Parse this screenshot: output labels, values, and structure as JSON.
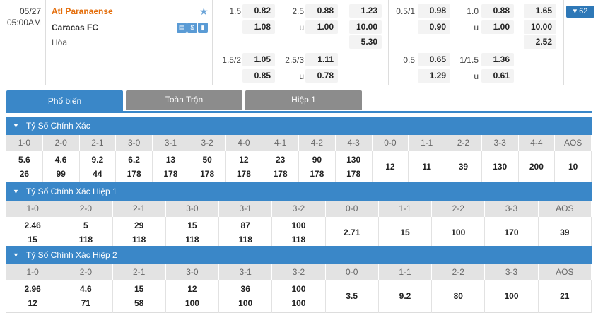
{
  "match": {
    "date": "05/27",
    "time": "05:00AM",
    "home_team": "Atl Paranaense",
    "away_team": "Caracas FC",
    "draw_label": "Hòa",
    "more_count": "62",
    "icons": [
      "stats-icon",
      "dollar-icon",
      "chart-icon"
    ],
    "handicap_ft": {
      "line1": "1.5",
      "home1": "0.82",
      "away1": "1.08",
      "line2": "1.5/2",
      "home2": "1.05",
      "away2": "0.85"
    },
    "ou_ft": {
      "line1": "2.5",
      "over1": "0.88",
      "u_label1": "u",
      "under1": "1.00",
      "line2": "2.5/3",
      "over2": "1.11",
      "u_label2": "u",
      "under2": "0.78"
    },
    "x12_ft": {
      "home": "1.23",
      "away": "10.00",
      "draw": "5.30"
    },
    "handicap_h1": {
      "line1": "0.5/1",
      "home1": "0.98",
      "away1": "0.90",
      "line2": "0.5",
      "home2": "0.65",
      "away2": "1.29"
    },
    "ou_h1": {
      "line1": "1.0",
      "over1": "0.88",
      "u_label1": "u",
      "under1": "1.00",
      "line2": "1/1.5",
      "over2": "1.36",
      "u_label2": "u",
      "under2": "0.61"
    },
    "x12_h1": {
      "home": "1.65",
      "away": "10.00",
      "draw": "2.52"
    }
  },
  "tabs": [
    {
      "label": "Phổ biến",
      "active": true
    },
    {
      "label": "Toàn Trận",
      "active": false
    },
    {
      "label": "Hiệp 1",
      "active": false
    }
  ],
  "sections": [
    {
      "title": "Tỷ Số Chính Xác",
      "columns": [
        {
          "score": "1-0",
          "a": "5.6",
          "b": "26"
        },
        {
          "score": "2-0",
          "a": "4.6",
          "b": "99"
        },
        {
          "score": "2-1",
          "a": "9.2",
          "b": "44"
        },
        {
          "score": "3-0",
          "a": "6.2",
          "b": "178"
        },
        {
          "score": "3-1",
          "a": "13",
          "b": "178"
        },
        {
          "score": "3-2",
          "a": "50",
          "b": "178"
        },
        {
          "score": "4-0",
          "a": "12",
          "b": "178"
        },
        {
          "score": "4-1",
          "a": "23",
          "b": "178"
        },
        {
          "score": "4-2",
          "a": "90",
          "b": "178"
        },
        {
          "score": "4-3",
          "a": "130",
          "b": "178"
        },
        {
          "score": "0-0",
          "s": "12"
        },
        {
          "score": "1-1",
          "s": "11"
        },
        {
          "score": "2-2",
          "s": "39"
        },
        {
          "score": "3-3",
          "s": "130"
        },
        {
          "score": "4-4",
          "s": "200"
        },
        {
          "score": "AOS",
          "s": "10"
        }
      ]
    },
    {
      "title": "Tỷ Số Chính Xác Hiệp 1",
      "columns": [
        {
          "score": "1-0",
          "a": "2.46",
          "b": "15"
        },
        {
          "score": "2-0",
          "a": "5",
          "b": "118"
        },
        {
          "score": "2-1",
          "a": "29",
          "b": "118"
        },
        {
          "score": "3-0",
          "a": "15",
          "b": "118"
        },
        {
          "score": "3-1",
          "a": "87",
          "b": "118"
        },
        {
          "score": "3-2",
          "a": "100",
          "b": "118"
        },
        {
          "score": "0-0",
          "s": "2.71"
        },
        {
          "score": "1-1",
          "s": "15"
        },
        {
          "score": "2-2",
          "s": "100"
        },
        {
          "score": "3-3",
          "s": "170"
        },
        {
          "score": "AOS",
          "s": "39"
        }
      ]
    },
    {
      "title": "Tỷ Số Chính Xác Hiệp 2",
      "columns": [
        {
          "score": "1-0",
          "a": "2.96",
          "b": "12"
        },
        {
          "score": "2-0",
          "a": "4.6",
          "b": "71"
        },
        {
          "score": "2-1",
          "a": "15",
          "b": "58"
        },
        {
          "score": "3-0",
          "a": "12",
          "b": "100"
        },
        {
          "score": "3-1",
          "a": "36",
          "b": "100"
        },
        {
          "score": "3-2",
          "a": "100",
          "b": "100"
        },
        {
          "score": "0-0",
          "s": "3.5"
        },
        {
          "score": "1-1",
          "s": "9.2"
        },
        {
          "score": "2-2",
          "s": "80"
        },
        {
          "score": "3-3",
          "s": "100"
        },
        {
          "score": "AOS",
          "s": "21"
        }
      ]
    }
  ]
}
